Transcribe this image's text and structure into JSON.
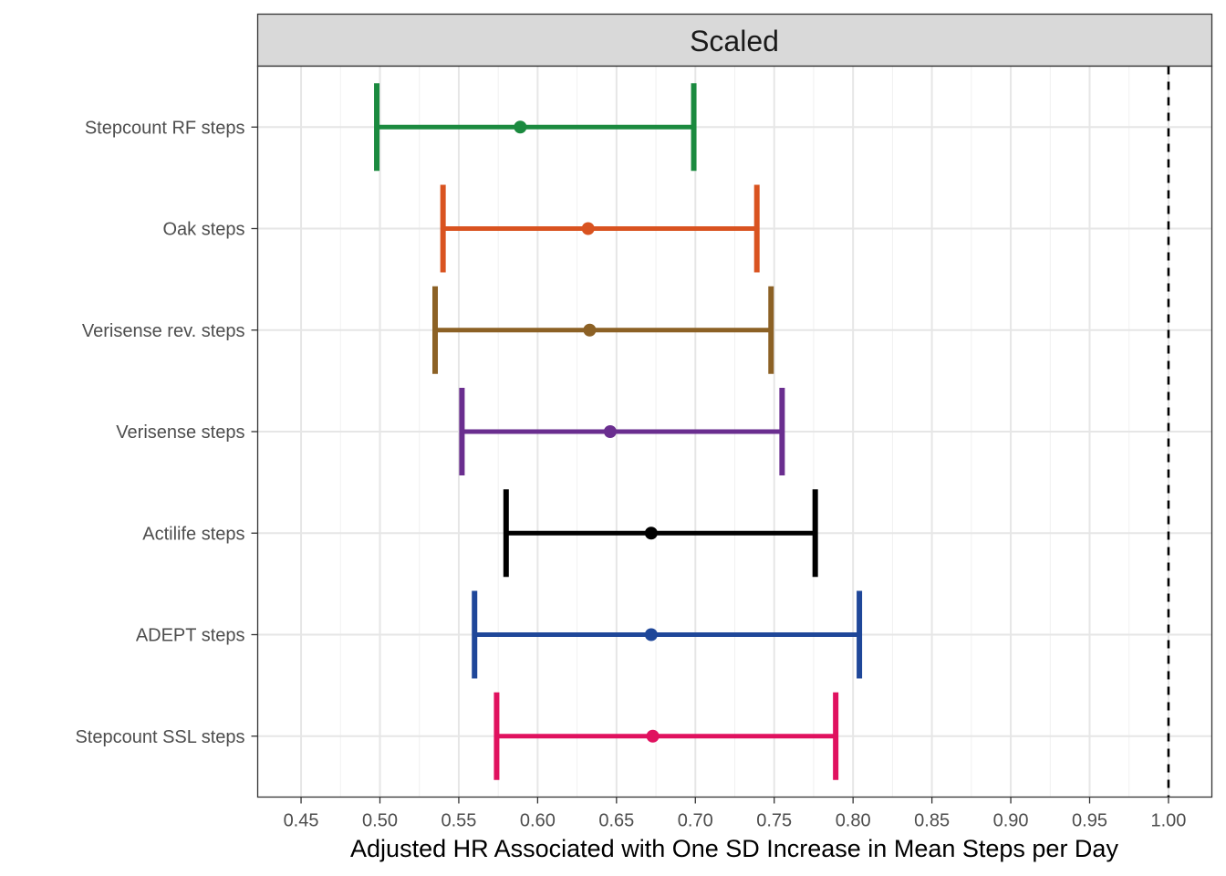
{
  "chart_data": {
    "type": "forest",
    "facet_label": "Scaled",
    "xlabel": "Adjusted HR Associated with One SD Increase in Mean Steps per Day",
    "xlim": [
      0.4225,
      1.0275
    ],
    "x_ticks": [
      "0.45",
      "0.50",
      "0.55",
      "0.60",
      "0.65",
      "0.70",
      "0.75",
      "0.80",
      "0.85",
      "0.90",
      "0.95",
      "1.00"
    ],
    "reference_line": 1.0,
    "grid": true,
    "series": [
      {
        "name": "Stepcount RF steps",
        "estimate": 0.589,
        "lower": 0.498,
        "upper": 0.699,
        "color": "#1b8a3f"
      },
      {
        "name": "Oak steps",
        "estimate": 0.632,
        "lower": 0.54,
        "upper": 0.739,
        "color": "#d95320"
      },
      {
        "name": "Verisense rev. steps",
        "estimate": 0.633,
        "lower": 0.535,
        "upper": 0.748,
        "color": "#8c6125"
      },
      {
        "name": "Verisense steps",
        "estimate": 0.646,
        "lower": 0.552,
        "upper": 0.755,
        "color": "#6a2e8f"
      },
      {
        "name": "Actilife steps",
        "estimate": 0.672,
        "lower": 0.58,
        "upper": 0.776,
        "color": "#000000"
      },
      {
        "name": "ADEPT steps",
        "estimate": 0.672,
        "lower": 0.56,
        "upper": 0.804,
        "color": "#1f4799"
      },
      {
        "name": "Stepcount SSL steps",
        "estimate": 0.673,
        "lower": 0.574,
        "upper": 0.789,
        "color": "#e0115f"
      }
    ]
  }
}
